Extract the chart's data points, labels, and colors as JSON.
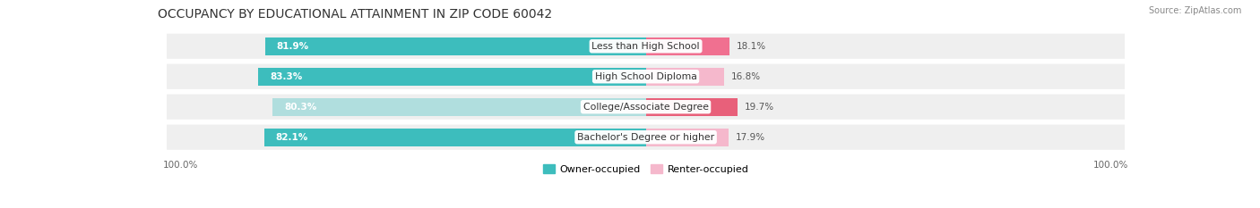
{
  "title": "OCCUPANCY BY EDUCATIONAL ATTAINMENT IN ZIP CODE 60042",
  "source": "Source: ZipAtlas.com",
  "categories": [
    "Less than High School",
    "High School Diploma",
    "College/Associate Degree",
    "Bachelor's Degree or higher"
  ],
  "owner_values": [
    81.9,
    83.3,
    80.3,
    82.1
  ],
  "renter_values": [
    18.1,
    16.8,
    19.7,
    17.9
  ],
  "owner_colors": [
    "#3dbdbd",
    "#3dbdbd",
    "#b0dede",
    "#3dbdbd"
  ],
  "renter_colors": [
    "#f07090",
    "#f5b8cc",
    "#e8607a",
    "#f5b8cc"
  ],
  "bg_row_color": "#efefef",
  "bar_height": 0.58,
  "figsize": [
    14.06,
    2.33
  ],
  "dpi": 100,
  "title_fontsize": 10,
  "label_fontsize": 7.8,
  "value_fontsize": 7.5,
  "legend_fontsize": 8,
  "axis_label_fontsize": 7.5
}
